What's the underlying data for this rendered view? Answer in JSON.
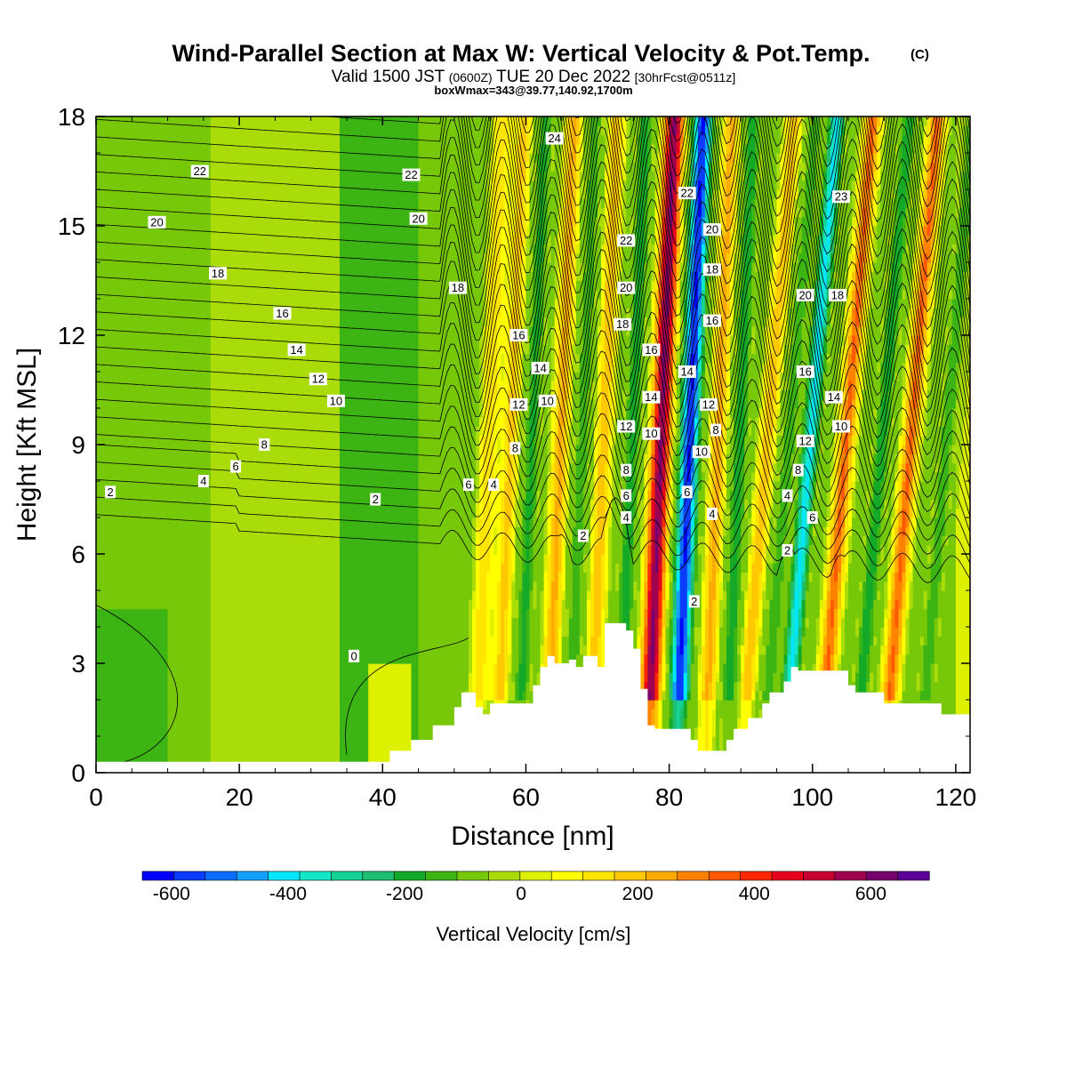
{
  "chart_data": {
    "type": "heatmap",
    "title": "Wind-Parallel Section at Max W: Vertical Velocity & Pot.Temp.",
    "title_units": "(C)",
    "subtitle_parts": [
      "Valid 1500 JST",
      "(0600Z)",
      "TUE 20 Dec 2022",
      "[30hrFcst@0511z]"
    ],
    "subtitle2": "boxWmax=343@39.77,140.92,1700m",
    "xlabel": "Distance [nm]",
    "ylabel": "Height [Kft MSL]",
    "xlim": [
      0,
      122
    ],
    "ylim": [
      0,
      18
    ],
    "xticks": [
      "0",
      "20",
      "40",
      "60",
      "80",
      "100",
      "120"
    ],
    "yticks": [
      "0",
      "3",
      "6",
      "9",
      "12",
      "15",
      "18"
    ],
    "colorbar": {
      "label": "Vertical Velocity [cm/s]",
      "tick_labels": [
        "-600",
        "-400",
        "-200",
        "0",
        "200",
        "400",
        "600"
      ],
      "range": [
        -650,
        700
      ],
      "colors": [
        "#0000ff",
        "#0a3cff",
        "#0a6eff",
        "#14a0ff",
        "#00e6ff",
        "#14e6c8",
        "#14d296",
        "#1ebe6e",
        "#14aa28",
        "#3cb414",
        "#78c80a",
        "#aadc0a",
        "#dcf000",
        "#ffff00",
        "#ffe600",
        "#ffc800",
        "#ffaa00",
        "#ff8200",
        "#ff5a00",
        "#ff2800",
        "#e6001e",
        "#c80032",
        "#a00050",
        "#78006e",
        "#5a0096"
      ]
    },
    "vertical_velocity_features": [
      {
        "x": 54,
        "w_peak": 150
      },
      {
        "x": 57,
        "w_peak": 180
      },
      {
        "x": 60,
        "w_peak": -180
      },
      {
        "x": 64,
        "w_peak": 230
      },
      {
        "x": 67,
        "w_peak": -150
      },
      {
        "x": 70,
        "w_peak": 200
      },
      {
        "x": 74,
        "w_peak": -200
      },
      {
        "x": 78,
        "w_peak": 600
      },
      {
        "x": 82,
        "w_peak": -600
      },
      {
        "x": 86,
        "w_peak": 230
      },
      {
        "x": 89,
        "w_peak": -200
      },
      {
        "x": 92,
        "w_peak": 200
      },
      {
        "x": 95,
        "w_peak": -150
      },
      {
        "x": 98,
        "w_peak": -400
      },
      {
        "x": 103,
        "w_peak": 330
      },
      {
        "x": 108,
        "w_peak": -200
      },
      {
        "x": 112,
        "w_peak": 330
      },
      {
        "x": 117,
        "w_peak": -150
      }
    ],
    "terrain": {
      "x": [
        0,
        40,
        41,
        44,
        47,
        50,
        51,
        52,
        53,
        54,
        55,
        60,
        61,
        62,
        63,
        64,
        66,
        67,
        68,
        70,
        71,
        72,
        74,
        75,
        76,
        77,
        78,
        83,
        84,
        88,
        89,
        91,
        93,
        94,
        96,
        97,
        98,
        100,
        105,
        106,
        108,
        110,
        112,
        115,
        118,
        122
      ],
      "elevation_kft": [
        0.3,
        0.3,
        0.6,
        0.9,
        1.3,
        1.8,
        2.2,
        2.2,
        1.8,
        1.6,
        1.9,
        1.9,
        2.4,
        2.9,
        3.2,
        3.0,
        3.1,
        2.9,
        3.2,
        2.9,
        4.1,
        4.1,
        3.9,
        3.4,
        2.3,
        1.3,
        1.2,
        0.9,
        0.6,
        0.9,
        1.2,
        1.5,
        1.9,
        2.2,
        2.5,
        2.9,
        2.8,
        2.8,
        2.4,
        2.2,
        2.2,
        1.9,
        1.9,
        1.9,
        1.6,
        1.6
      ]
    },
    "potential_temperature_labels": [
      {
        "label": "2",
        "x": 2,
        "y": 7.7
      },
      {
        "label": "4",
        "x": 15,
        "y": 8.0
      },
      {
        "label": "6",
        "x": 19.5,
        "y": 8.4
      },
      {
        "label": "8",
        "x": 23.5,
        "y": 9.0
      },
      {
        "label": "10",
        "x": 33.5,
        "y": 10.2
      },
      {
        "label": "12",
        "x": 31,
        "y": 10.8
      },
      {
        "label": "14",
        "x": 28,
        "y": 11.6
      },
      {
        "label": "16",
        "x": 26,
        "y": 12.6
      },
      {
        "label": "18",
        "x": 17,
        "y": 13.7
      },
      {
        "label": "20",
        "x": 8.5,
        "y": 15.1
      },
      {
        "label": "22",
        "x": 14.5,
        "y": 16.5
      },
      {
        "label": "2",
        "x": 39,
        "y": 7.5
      },
      {
        "label": "0",
        "x": 36,
        "y": 3.2
      },
      {
        "label": "22",
        "x": 44,
        "y": 16.4
      },
      {
        "label": "20",
        "x": 45,
        "y": 15.2
      },
      {
        "label": "18",
        "x": 50.5,
        "y": 13.3
      },
      {
        "label": "16",
        "x": 59,
        "y": 12.0
      },
      {
        "label": "14",
        "x": 62,
        "y": 11.1
      },
      {
        "label": "12",
        "x": 59,
        "y": 10.1
      },
      {
        "label": "10",
        "x": 63,
        "y": 10.2
      },
      {
        "label": "8",
        "x": 58.5,
        "y": 8.9
      },
      {
        "label": "6",
        "x": 52,
        "y": 7.9
      },
      {
        "label": "4",
        "x": 55.5,
        "y": 7.9
      },
      {
        "label": "2",
        "x": 68,
        "y": 6.5
      },
      {
        "label": "24",
        "x": 64,
        "y": 17.4
      },
      {
        "label": "22",
        "x": 74,
        "y": 14.6
      },
      {
        "label": "20",
        "x": 74,
        "y": 13.3
      },
      {
        "label": "18",
        "x": 73.5,
        "y": 12.3
      },
      {
        "label": "16",
        "x": 77.5,
        "y": 11.6
      },
      {
        "label": "14",
        "x": 77.5,
        "y": 10.3
      },
      {
        "label": "12",
        "x": 74,
        "y": 9.5
      },
      {
        "label": "10",
        "x": 77.5,
        "y": 9.3
      },
      {
        "label": "8",
        "x": 74,
        "y": 8.3
      },
      {
        "label": "6",
        "x": 74,
        "y": 7.6
      },
      {
        "label": "4",
        "x": 74,
        "y": 7.0
      },
      {
        "label": "22",
        "x": 82.5,
        "y": 15.9
      },
      {
        "label": "20",
        "x": 86,
        "y": 14.9
      },
      {
        "label": "18",
        "x": 86,
        "y": 13.8
      },
      {
        "label": "16",
        "x": 86,
        "y": 12.4
      },
      {
        "label": "14",
        "x": 82.5,
        "y": 11.0
      },
      {
        "label": "12",
        "x": 85.5,
        "y": 10.1
      },
      {
        "label": "10",
        "x": 84.5,
        "y": 8.8
      },
      {
        "label": "8",
        "x": 86.5,
        "y": 9.4
      },
      {
        "label": "6",
        "x": 82.5,
        "y": 7.7
      },
      {
        "label": "4",
        "x": 86,
        "y": 7.1
      },
      {
        "label": "2",
        "x": 83.5,
        "y": 4.7
      },
      {
        "label": "23",
        "x": 104,
        "y": 15.8
      },
      {
        "label": "20",
        "x": 99,
        "y": 13.1
      },
      {
        "label": "18",
        "x": 103.5,
        "y": 13.1
      },
      {
        "label": "16",
        "x": 99,
        "y": 11.0
      },
      {
        "label": "14",
        "x": 103,
        "y": 10.3
      },
      {
        "label": "12",
        "x": 99,
        "y": 9.1
      },
      {
        "label": "10",
        "x": 104,
        "y": 9.5
      },
      {
        "label": "8",
        "x": 98,
        "y": 8.3
      },
      {
        "label": "6",
        "x": 100,
        "y": 7.0
      },
      {
        "label": "4",
        "x": 96.5,
        "y": 7.6
      },
      {
        "label": "2",
        "x": 96.5,
        "y": 6.1
      }
    ]
  }
}
